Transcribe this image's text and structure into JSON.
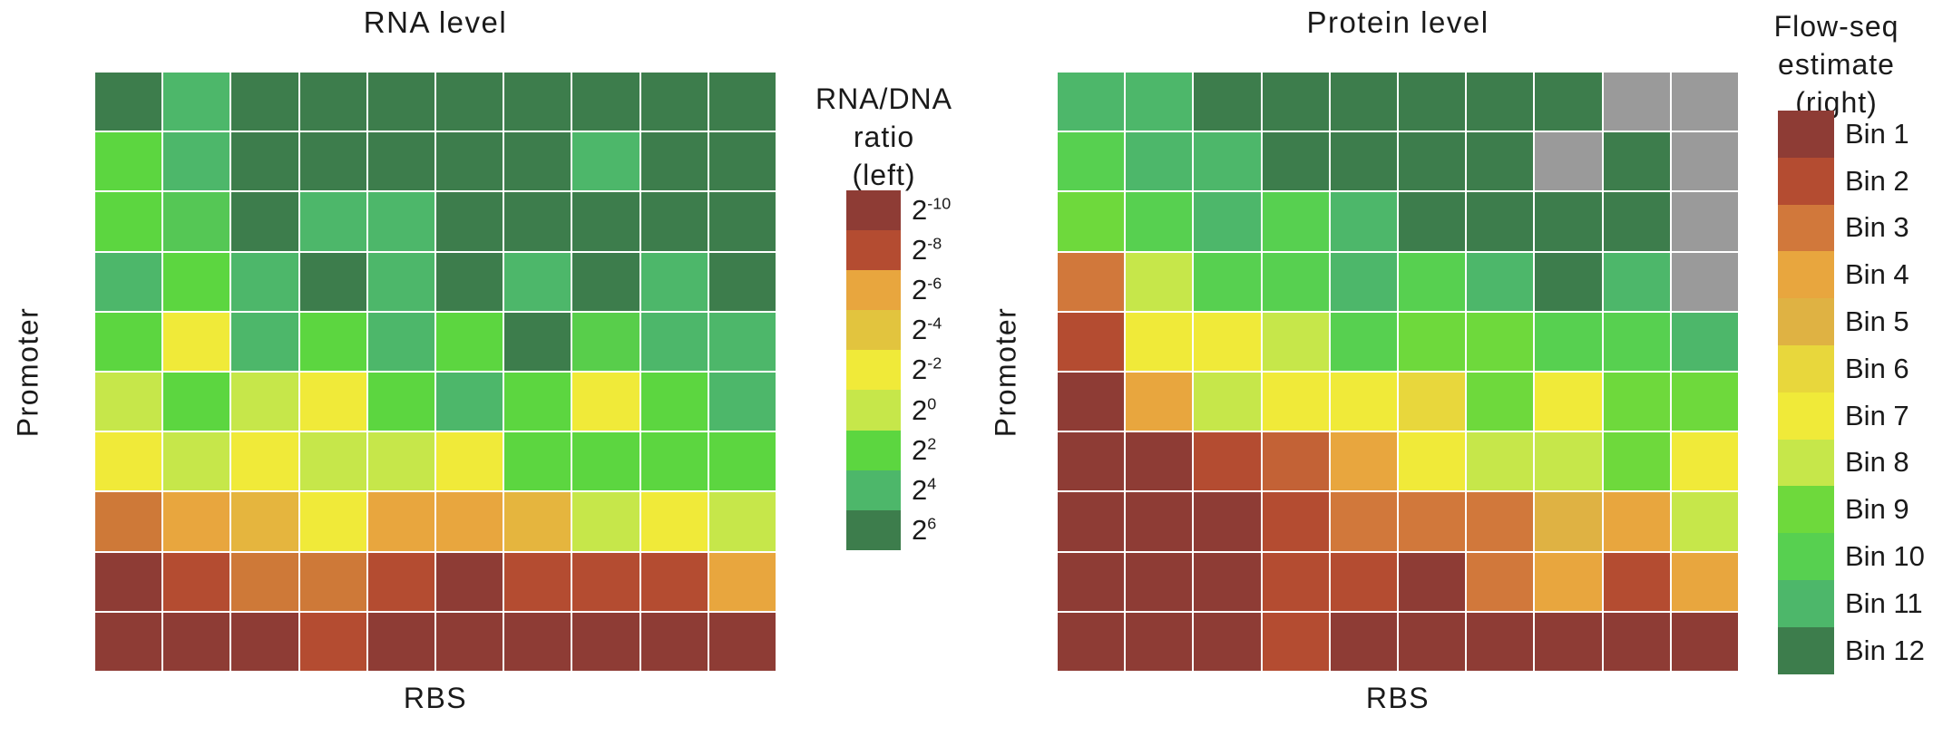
{
  "chart_data": [
    {
      "type": "heatmap",
      "title": "RNA level",
      "xlabel": "RBS",
      "ylabel": "Promoter",
      "rows": 10,
      "cols": 10,
      "value_meaning": "log2 of RNA/DNA ratio, color-encoded",
      "values": [
        [
          6,
          4,
          6,
          6,
          6,
          6,
          6,
          6,
          6,
          6
        ],
        [
          2,
          4,
          6,
          6,
          6,
          6,
          6,
          4,
          6,
          6
        ],
        [
          2,
          3,
          6,
          4,
          4,
          6,
          6,
          6,
          6,
          6
        ],
        [
          4,
          2,
          4,
          6,
          4,
          6,
          4,
          6,
          4,
          6
        ],
        [
          2,
          -2,
          4,
          2,
          4,
          2,
          6,
          2.5,
          4,
          4
        ],
        [
          0,
          2,
          0,
          -2,
          2,
          4,
          2,
          -2,
          2,
          4
        ],
        [
          -2,
          0,
          -2,
          0,
          0,
          -2,
          2,
          2,
          2,
          2
        ],
        [
          -7,
          -6,
          -5,
          -2,
          -6,
          -6,
          -5,
          0,
          -2,
          0
        ],
        [
          -10,
          -8,
          -7,
          -7,
          -8,
          -10,
          -8,
          -8,
          -8,
          -6
        ],
        [
          -10,
          -10,
          -10,
          -8,
          -10,
          -10,
          -10,
          -10,
          -10,
          -10
        ]
      ],
      "no_data_color": "#9a9a9a",
      "legend": {
        "title_lines": [
          "RNA/DNA",
          "ratio",
          "(left)"
        ],
        "label_base": "2",
        "exponents": [
          "-10",
          "-8",
          "-6",
          "-4",
          "-2",
          "0",
          "2",
          "4",
          "6"
        ],
        "values": [
          -10,
          -8,
          -6,
          -4,
          -2,
          0,
          2,
          4,
          6
        ],
        "colors": [
          "#8e3c35",
          "#b44c31",
          "#e8a63e",
          "#e2c43e",
          "#f0ea39",
          "#c6e74a",
          "#5cd640",
          "#4db76a",
          "#3d7d4c"
        ]
      }
    },
    {
      "type": "heatmap",
      "title": "Protein level",
      "xlabel": "RBS",
      "ylabel": "Promoter",
      "rows": 10,
      "cols": 10,
      "value_meaning": "Flow-seq bin number 1-12, color-encoded; null = no data (gray)",
      "values": [
        [
          11,
          11,
          12,
          12,
          12,
          12,
          12,
          12,
          null,
          null
        ],
        [
          10,
          11,
          11,
          12,
          12,
          12,
          12,
          null,
          12,
          null
        ],
        [
          9,
          10,
          11,
          10,
          11,
          12,
          12,
          12,
          12,
          null
        ],
        [
          3,
          8,
          10,
          10,
          11,
          10,
          11,
          12,
          11,
          null
        ],
        [
          2,
          7,
          7,
          8,
          10,
          9,
          9,
          10,
          10,
          11
        ],
        [
          1,
          4,
          8,
          7,
          7,
          6,
          9,
          7,
          9,
          9
        ],
        [
          1,
          1,
          2,
          2.5,
          4,
          7,
          8,
          8,
          9,
          7
        ],
        [
          1,
          1,
          1,
          2,
          3,
          3,
          3,
          5,
          4,
          8
        ],
        [
          1,
          1,
          1,
          2,
          2,
          1,
          3,
          4,
          2,
          4
        ],
        [
          1,
          1,
          1,
          2,
          1,
          1,
          1,
          1,
          1,
          1
        ]
      ],
      "no_data_color": "#9a9a9a",
      "legend": {
        "title_lines": [
          "Flow-seq",
          "estimate",
          "(right)"
        ],
        "labels": [
          "Bin 1",
          "Bin 2",
          "Bin 3",
          "Bin 4",
          "Bin 5",
          "Bin 6",
          "Bin 7",
          "Bin 8",
          "Bin 9",
          "Bin 10",
          "Bin 11",
          "Bin 12"
        ],
        "values": [
          1,
          2,
          3,
          4,
          5,
          6,
          7,
          8,
          9,
          10,
          11,
          12
        ],
        "colors": [
          "#8e3c35",
          "#b44c31",
          "#d1783b",
          "#e8a63e",
          "#dfb243",
          "#e8d73c",
          "#f0ea39",
          "#c6e74a",
          "#6ed93c",
          "#57d050",
          "#4db76a",
          "#3d7d4c"
        ]
      }
    }
  ]
}
